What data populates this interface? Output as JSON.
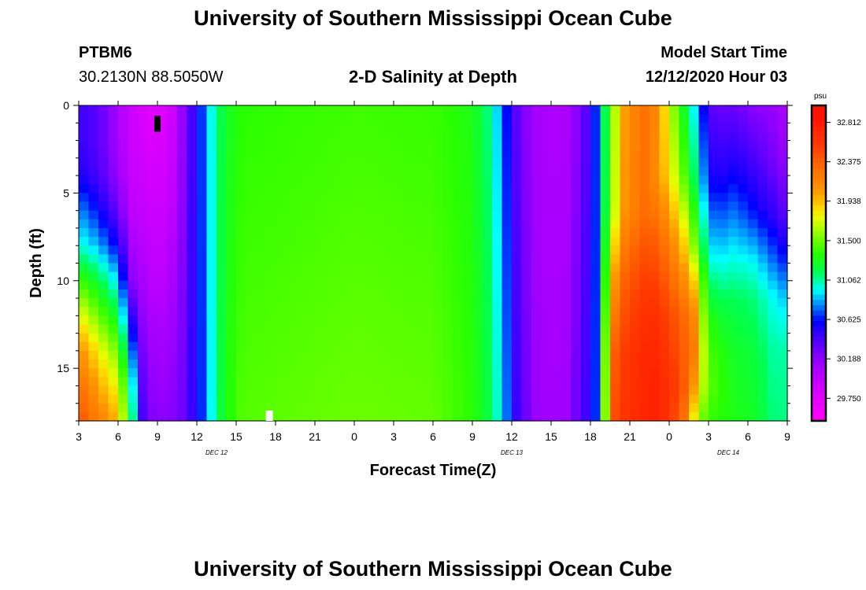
{
  "header": {
    "top_title": "University of Southern Mississippi Ocean Cube",
    "station": "PTBM6",
    "coords": "30.2130N 88.5050W",
    "chart_title": "2-D Salinity at Depth",
    "model_start_label": "Model Start Time",
    "model_start_value": "12/12/2020 Hour 03",
    "bottom_title": "University of Southern Mississippi Ocean Cube"
  },
  "chart_data": {
    "type": "heatmap",
    "title": "2-D Salinity at Depth",
    "xlabel": "Forecast Time(Z)",
    "ylabel": "Depth (ft)",
    "x_range_hours": [
      3,
      57
    ],
    "y_range": [
      0,
      18
    ],
    "x_ticks": [
      "3",
      "6",
      "9",
      "12",
      "15",
      "18",
      "21",
      "0",
      "3",
      "6",
      "9",
      "12",
      "15",
      "18",
      "21",
      "0",
      "3",
      "6",
      "9"
    ],
    "y_ticks": [
      "0",
      "5",
      "10",
      "15"
    ],
    "day_labels": [
      {
        "text": "DEC 12",
        "hour": 13.5
      },
      {
        "text": "DEC 13",
        "hour": 36
      },
      {
        "text": "DEC 14",
        "hour": 52.5
      }
    ],
    "colorbar": {
      "unit": "psu",
      "min": 29.5,
      "max": 33.0,
      "ticks": [
        "32.812",
        "32.375",
        "31.938",
        "31.500",
        "31.062",
        "30.625",
        "30.188",
        "29.750"
      ]
    },
    "markers": [
      {
        "kind": "black-bar",
        "hour": 9,
        "depth_top": 0.6,
        "depth_bottom": 1.5
      },
      {
        "kind": "white-square",
        "hour": 17.5,
        "depth_top": 17.5,
        "depth_bottom": 18
      }
    ],
    "column_profiles": [
      {
        "hour": 3.0,
        "depth": [
          0,
          2,
          4,
          6,
          8,
          10,
          12,
          14,
          16,
          18
        ],
        "psu": [
          30.45,
          30.45,
          30.55,
          30.8,
          31.0,
          31.4,
          31.8,
          32.1,
          32.3,
          32.45
        ]
      },
      {
        "hour": 4.5,
        "depth": [
          0,
          2,
          4,
          6,
          8,
          10,
          12,
          14,
          16,
          18
        ],
        "psu": [
          30.35,
          30.35,
          30.4,
          30.6,
          30.85,
          31.2,
          31.5,
          31.8,
          32.0,
          32.2
        ]
      },
      {
        "hour": 6.0,
        "depth": [
          0,
          2,
          4,
          6,
          8,
          10,
          12,
          14,
          16,
          18
        ],
        "psu": [
          30.1,
          30.1,
          30.15,
          30.3,
          30.55,
          30.9,
          31.2,
          31.5,
          31.75,
          31.95
        ]
      },
      {
        "hour": 7.0,
        "depth": [
          0,
          2,
          4,
          6,
          8,
          10,
          12,
          14,
          16,
          18
        ],
        "psu": [
          29.9,
          29.9,
          29.95,
          30.0,
          30.1,
          30.2,
          30.5,
          30.8,
          31.05,
          31.2
        ]
      },
      {
        "hour": 8.0,
        "depth": [
          0,
          18
        ],
        "psu": [
          29.78,
          30.3
        ]
      },
      {
        "hour": 9.0,
        "depth": [
          0,
          18
        ],
        "psu": [
          29.72,
          30.2
        ]
      },
      {
        "hour": 10.0,
        "depth": [
          0,
          18
        ],
        "psu": [
          29.85,
          30.22
        ]
      },
      {
        "hour": 11.0,
        "depth": [
          0,
          18
        ],
        "psu": [
          30.2,
          30.3
        ]
      },
      {
        "hour": 12.0,
        "depth": [
          0,
          18
        ],
        "psu": [
          30.55,
          30.55
        ]
      },
      {
        "hour": 12.7,
        "depth": [
          0,
          18
        ],
        "psu": [
          30.78,
          30.75
        ]
      },
      {
        "hour": 13.3,
        "depth": [
          0,
          18
        ],
        "psu": [
          31.05,
          31.05
        ]
      },
      {
        "hour": 14.2,
        "depth": [
          0,
          18
        ],
        "psu": [
          31.25,
          31.3
        ]
      },
      {
        "hour": 15.5,
        "depth": [
          0,
          18
        ],
        "psu": [
          31.35,
          31.45
        ]
      },
      {
        "hour": 24.0,
        "depth": [
          0,
          18
        ],
        "psu": [
          31.4,
          31.5
        ]
      },
      {
        "hour": 30.0,
        "depth": [
          0,
          18
        ],
        "psu": [
          31.38,
          31.48
        ]
      },
      {
        "hour": 33.0,
        "depth": [
          0,
          18
        ],
        "psu": [
          31.3,
          31.35
        ]
      },
      {
        "hour": 34.5,
        "depth": [
          0,
          18
        ],
        "psu": [
          31.05,
          31.15
        ]
      },
      {
        "hour": 35.5,
        "depth": [
          0,
          18
        ],
        "psu": [
          30.65,
          30.8
        ]
      },
      {
        "hour": 36.5,
        "depth": [
          0,
          18
        ],
        "psu": [
          30.3,
          30.4
        ]
      },
      {
        "hour": 38.0,
        "depth": [
          0,
          18
        ],
        "psu": [
          30.08,
          30.12
        ]
      },
      {
        "hour": 40.0,
        "depth": [
          0,
          18
        ],
        "psu": [
          30.05,
          30.1
        ]
      },
      {
        "hour": 41.5,
        "depth": [
          0,
          18
        ],
        "psu": [
          30.3,
          30.4
        ]
      },
      {
        "hour": 42.3,
        "depth": [
          0,
          18
        ],
        "psu": [
          30.6,
          30.6
        ]
      },
      {
        "hour": 42.9,
        "depth": [
          0,
          18
        ],
        "psu": [
          31.0,
          31.05
        ]
      },
      {
        "hour": 43.5,
        "depth": [
          0,
          6,
          10,
          14,
          18
        ],
        "psu": [
          31.45,
          31.5,
          31.9,
          32.3,
          32.4
        ]
      },
      {
        "hour": 44.5,
        "depth": [
          0,
          6,
          10,
          14,
          18
        ],
        "psu": [
          32.0,
          32.05,
          32.35,
          32.55,
          32.6
        ]
      },
      {
        "hour": 46.0,
        "depth": [
          0,
          6,
          10,
          14,
          18
        ],
        "psu": [
          32.3,
          32.3,
          32.55,
          32.7,
          32.72
        ]
      },
      {
        "hour": 47.0,
        "depth": [
          0,
          4,
          8,
          12,
          16,
          18
        ],
        "psu": [
          32.15,
          32.1,
          32.4,
          32.65,
          32.75,
          32.75
        ]
      },
      {
        "hour": 48.0,
        "depth": [
          0,
          4,
          8,
          12,
          16,
          18
        ],
        "psu": [
          31.7,
          31.85,
          32.2,
          32.5,
          32.65,
          32.6
        ]
      },
      {
        "hour": 49.0,
        "depth": [
          0,
          4,
          8,
          12,
          16,
          18
        ],
        "psu": [
          31.3,
          31.5,
          31.95,
          32.35,
          32.45,
          32.35
        ]
      },
      {
        "hour": 50.0,
        "depth": [
          0,
          4,
          8,
          10,
          12,
          14,
          16,
          18
        ],
        "psu": [
          30.9,
          31.1,
          31.5,
          31.85,
          32.1,
          32.2,
          32.0,
          31.7
        ]
      },
      {
        "hour": 50.7,
        "depth": [
          0,
          4,
          8,
          10,
          12,
          14,
          16,
          18
        ],
        "psu": [
          30.55,
          30.75,
          31.1,
          31.35,
          31.5,
          31.6,
          31.6,
          31.45
        ]
      },
      {
        "hour": 51.5,
        "depth": [
          0,
          4,
          8,
          10,
          12,
          14,
          16,
          18
        ],
        "psu": [
          30.3,
          30.5,
          30.85,
          31.05,
          31.25,
          31.35,
          31.4,
          31.35
        ]
      },
      {
        "hour": 53.0,
        "depth": [
          0,
          3,
          6,
          9,
          11,
          14,
          18
        ],
        "psu": [
          30.3,
          30.5,
          30.75,
          31.0,
          31.15,
          31.25,
          31.3
        ]
      },
      {
        "hour": 54.5,
        "depth": [
          0,
          3,
          6,
          9,
          11,
          14,
          18
        ],
        "psu": [
          30.2,
          30.4,
          30.6,
          30.95,
          31.1,
          31.2,
          31.25
        ]
      },
      {
        "hour": 56.0,
        "depth": [
          0,
          3,
          6,
          9,
          11,
          14,
          18
        ],
        "psu": [
          30.15,
          30.25,
          30.45,
          30.75,
          30.95,
          31.05,
          31.1
        ]
      },
      {
        "hour": 57.0,
        "depth": [
          0,
          3,
          6,
          8,
          10,
          12,
          14,
          18
        ],
        "psu": [
          30.05,
          30.15,
          30.3,
          30.5,
          30.75,
          30.95,
          31.05,
          31.1
        ]
      }
    ]
  }
}
